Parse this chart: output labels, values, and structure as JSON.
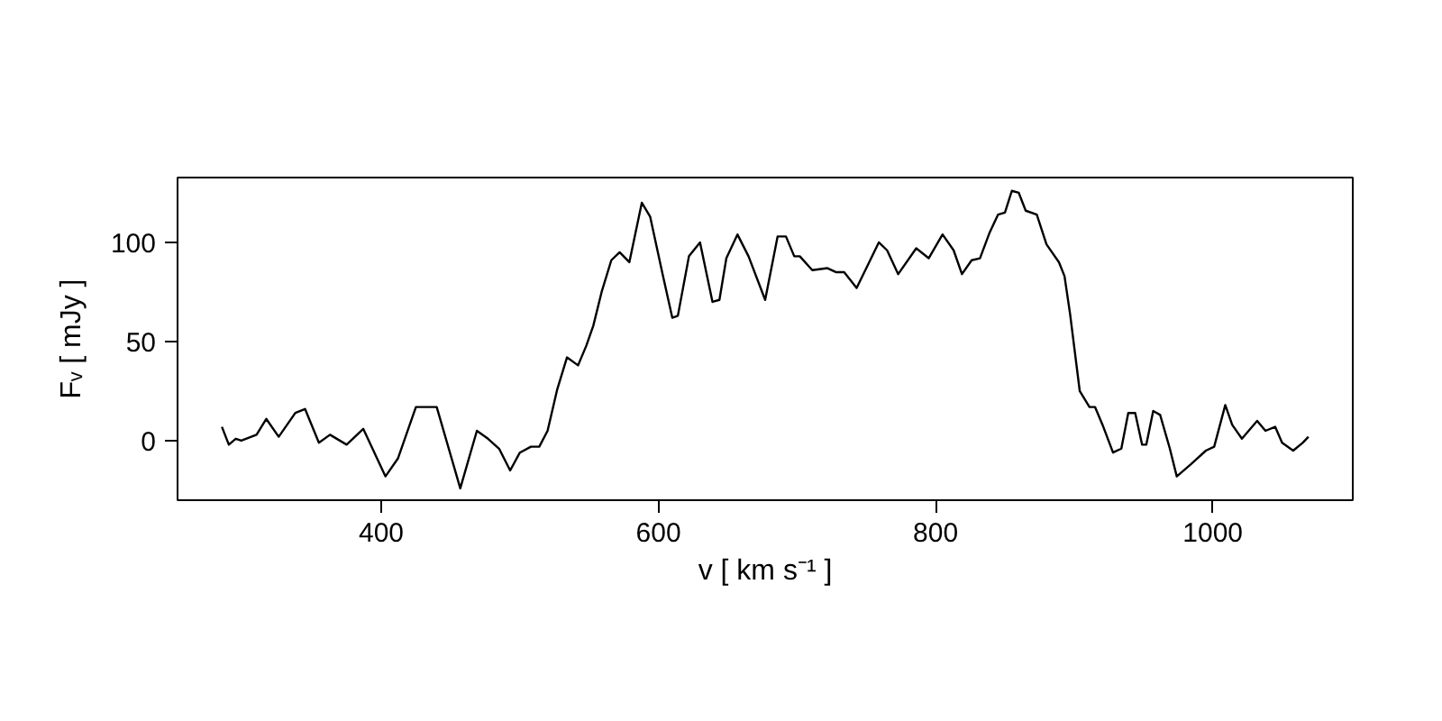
{
  "chart_data": {
    "type": "line",
    "xlabel": "v [ km s⁻¹ ]",
    "ylabel": "Fᵥ [ mJy ]",
    "x": [
      285,
      290,
      295,
      299,
      310,
      317,
      326,
      338,
      345,
      355,
      363,
      375,
      387,
      403,
      412,
      425,
      433,
      440,
      457,
      469,
      477,
      485,
      493,
      500,
      508,
      514,
      520,
      527,
      534,
      542,
      548,
      553,
      559,
      566,
      572,
      579,
      588,
      594,
      603,
      610,
      614,
      622,
      630,
      639,
      644,
      649,
      657,
      665,
      677,
      686,
      692,
      698,
      702,
      711,
      722,
      728,
      734,
      743,
      750,
      759,
      765,
      773,
      786,
      795,
      805,
      813,
      819,
      826,
      832,
      839,
      845,
      850,
      855,
      860,
      865,
      873,
      880,
      889,
      893,
      897,
      904,
      911,
      915,
      921,
      928,
      934,
      939,
      944,
      949,
      952,
      957,
      962,
      969,
      974,
      984,
      995,
      1001,
      1009,
      1014,
      1021,
      1032,
      1038,
      1045,
      1050,
      1058,
      1065,
      1069
    ],
    "series": [
      {
        "color": "#000000",
        "values": [
          7,
          -2,
          1,
          0,
          3,
          11,
          2,
          14,
          16,
          -1,
          3,
          -2,
          6,
          -18,
          -9,
          17,
          17,
          17,
          -24,
          5,
          1,
          -4,
          -15,
          -6,
          -3,
          -3,
          5,
          26,
          42,
          38,
          48,
          58,
          75,
          91,
          95,
          90,
          120,
          113,
          84,
          62,
          63,
          93,
          100,
          70,
          71,
          92,
          104,
          93,
          71,
          103,
          103,
          93,
          93,
          86,
          87,
          85,
          85,
          77,
          87,
          100,
          96,
          84,
          97,
          92,
          104,
          96,
          84,
          91,
          92,
          105,
          114,
          115,
          126,
          125,
          116,
          114,
          99,
          90,
          83,
          64,
          25,
          17,
          17,
          7,
          -6,
          -4,
          14,
          14,
          -2,
          -2,
          15,
          13,
          -4,
          -18,
          -12,
          -5,
          -3,
          18,
          8,
          1,
          10,
          5,
          7,
          -1,
          -5,
          -1,
          2
        ]
      }
    ],
    "xlim": [
      253,
      1101
    ],
    "ylim": [
      -30,
      132.7
    ],
    "xticks": [
      400,
      600,
      800,
      1000
    ],
    "yticks": [
      0,
      50,
      100
    ],
    "grid": false,
    "marker": "none",
    "line_style": "solid"
  }
}
